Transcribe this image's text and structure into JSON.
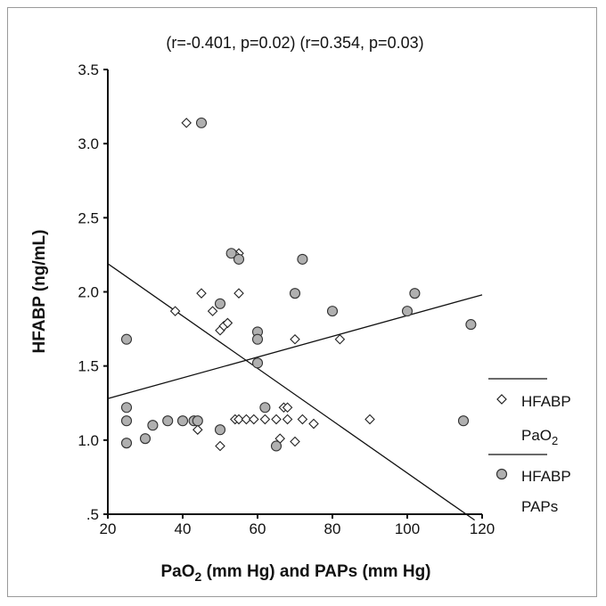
{
  "chart_data": {
    "type": "scatter",
    "title": "(r=-0.401, p=0.02) (r=0.354, p=0.03)",
    "xlabel_main": "PaO",
    "xlabel_sub": "2",
    "xlabel_rest": " (mm Hg) and PAPs (mm Hg)",
    "ylabel": "HFABP (ng/mL)",
    "xlim": [
      20,
      120
    ],
    "ylim": [
      0.5,
      3.5
    ],
    "x_ticks": [
      20,
      40,
      60,
      80,
      100,
      120
    ],
    "y_ticks": [
      0.5,
      1.0,
      1.5,
      2.0,
      2.5,
      3.0,
      3.5
    ],
    "y_tick_labels": [
      ".5",
      "1.0",
      "1.5",
      "2.0",
      "2.5",
      "3.0",
      "3.5"
    ],
    "x_tick_labels": [
      "20",
      "40",
      "60",
      "80",
      "100",
      "120"
    ],
    "grid": false,
    "legend_position": "right",
    "series": [
      {
        "name": "HFABP PaO2",
        "legend_line1": "HFABP",
        "legend_line2_main": "PaO",
        "legend_line2_sub": "2",
        "marker": "diamond",
        "color": "#ffffff",
        "stroke": "#222222",
        "points": [
          [
            41,
            3.14
          ],
          [
            45,
            1.99
          ],
          [
            38,
            1.87
          ],
          [
            48,
            1.87
          ],
          [
            50,
            1.74
          ],
          [
            51,
            1.77
          ],
          [
            52,
            1.79
          ],
          [
            55,
            2.26
          ],
          [
            55,
            1.99
          ],
          [
            54,
            2.25
          ],
          [
            50,
            0.96
          ],
          [
            44,
            1.07
          ],
          [
            54,
            1.14
          ],
          [
            55,
            1.14
          ],
          [
            57,
            1.14
          ],
          [
            59,
            1.14
          ],
          [
            62,
            1.14
          ],
          [
            65,
            1.14
          ],
          [
            66,
            1.01
          ],
          [
            67,
            1.22
          ],
          [
            68,
            1.22
          ],
          [
            68,
            1.14
          ],
          [
            70,
            0.99
          ],
          [
            72,
            1.14
          ],
          [
            75,
            1.11
          ],
          [
            70,
            1.68
          ],
          [
            82,
            1.68
          ],
          [
            90,
            1.14
          ]
        ]
      },
      {
        "name": "HFABP PAPs",
        "legend_line1": "HFABP",
        "legend_line2": "PAPs",
        "marker": "circle",
        "color": "#b0b0b0",
        "stroke": "#333333",
        "points": [
          [
            45,
            3.14
          ],
          [
            53,
            2.26
          ],
          [
            55,
            2.22
          ],
          [
            72,
            2.22
          ],
          [
            50,
            1.92
          ],
          [
            70,
            1.99
          ],
          [
            102,
            1.99
          ],
          [
            80,
            1.87
          ],
          [
            100,
            1.87
          ],
          [
            60,
            1.73
          ],
          [
            60,
            1.68
          ],
          [
            117,
            1.78
          ],
          [
            25,
            1.68
          ],
          [
            60,
            1.52
          ],
          [
            25,
            1.22
          ],
          [
            25,
            1.13
          ],
          [
            25,
            0.98
          ],
          [
            30,
            1.01
          ],
          [
            32,
            1.1
          ],
          [
            36,
            1.13
          ],
          [
            40,
            1.13
          ],
          [
            43,
            1.13
          ],
          [
            44,
            1.13
          ],
          [
            50,
            1.07
          ],
          [
            62,
            1.22
          ],
          [
            65,
            0.96
          ],
          [
            115,
            1.13
          ]
        ]
      }
    ],
    "fit_lines": [
      {
        "series": "HFABP PaO2",
        "x": [
          20,
          118
        ],
        "y": [
          2.19,
          0.46
        ]
      },
      {
        "series": "HFABP PAPs",
        "x": [
          20,
          120
        ],
        "y": [
          1.28,
          1.98
        ]
      }
    ]
  }
}
